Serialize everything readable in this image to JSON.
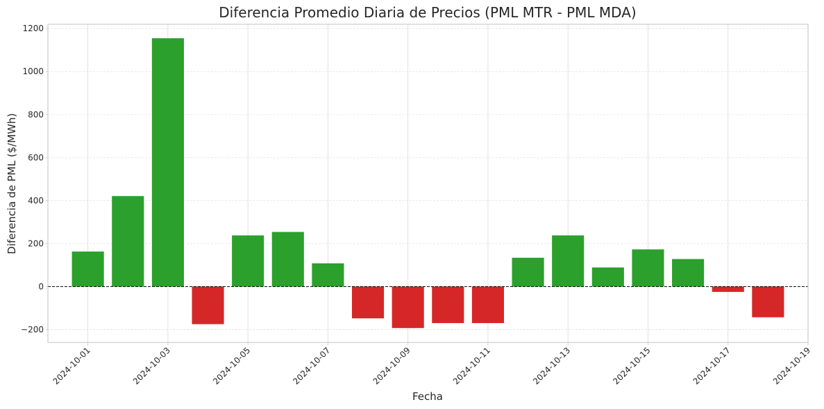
{
  "chart_data": {
    "type": "bar",
    "title": "Diferencia Promedio Diaria de Precios (PML MTR - PML MDA)",
    "xlabel": "Fecha",
    "ylabel": "Diferencia de PML ($/MWh)",
    "ylim": [
      -260,
      1220
    ],
    "yticks": [
      -200,
      0,
      200,
      400,
      600,
      800,
      1000,
      1200
    ],
    "xlim": [
      "2024-09-30",
      "2024-10-19"
    ],
    "xticks": [
      "2024-10-01",
      "2024-10-03",
      "2024-10-05",
      "2024-10-07",
      "2024-10-09",
      "2024-10-11",
      "2024-10-13",
      "2024-10-15",
      "2024-10-17",
      "2024-10-19"
    ],
    "categories": [
      "2024-10-01",
      "2024-10-02",
      "2024-10-03",
      "2024-10-04",
      "2024-10-05",
      "2024-10-06",
      "2024-10-07",
      "2024-10-08",
      "2024-10-09",
      "2024-10-10",
      "2024-10-11",
      "2024-10-12",
      "2024-10-13",
      "2024-10-14",
      "2024-10-15",
      "2024-10-16",
      "2024-10-17",
      "2024-10-18"
    ],
    "values": [
      163,
      421,
      1155,
      -175,
      238,
      254,
      108,
      -148,
      -193,
      -170,
      -170,
      134,
      238,
      89,
      173,
      128,
      -25,
      -143
    ],
    "positive_color": "#2ca02c",
    "negative_color": "#d62728",
    "grid": true,
    "zero_line": true
  }
}
